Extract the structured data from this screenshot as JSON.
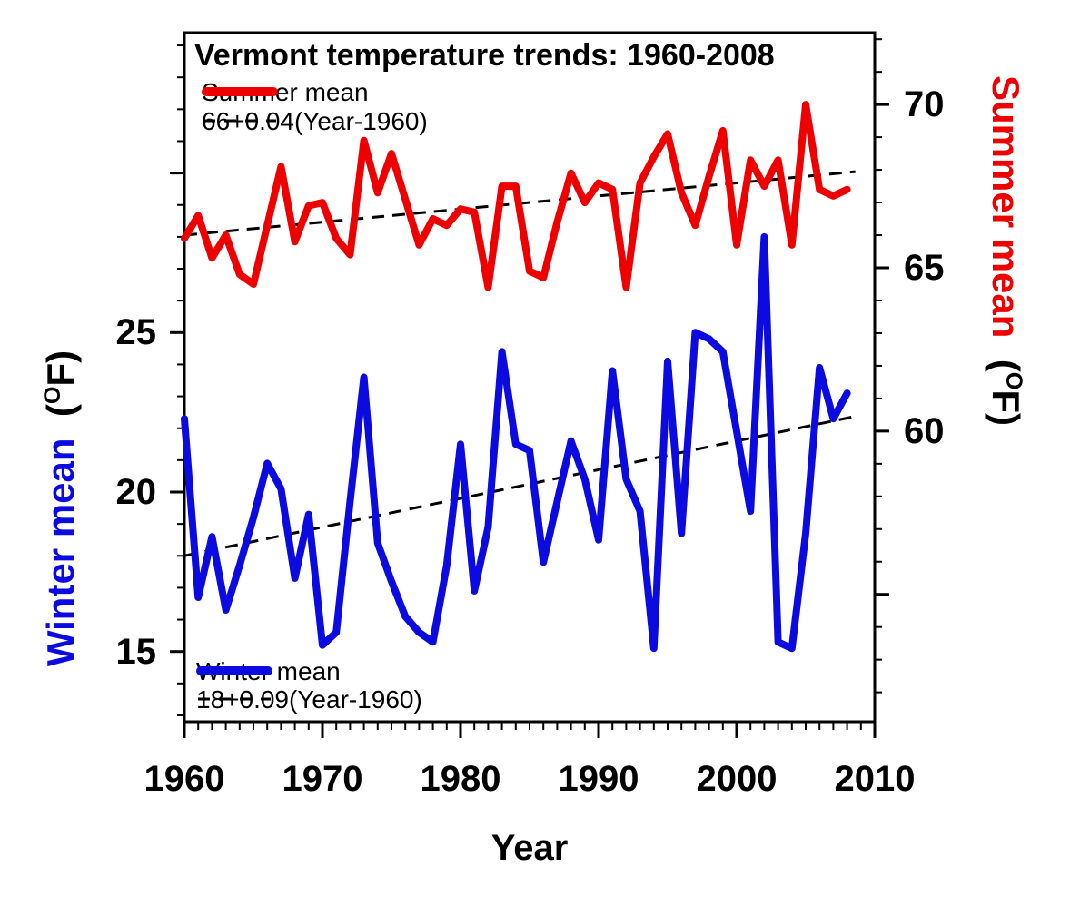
{
  "title": "Vermont temperature trends: 1960-2008",
  "colors": {
    "summer": "#ee0000",
    "winter": "#0b0be1",
    "trend": "#000000",
    "frame": "#000000"
  },
  "legend_top": {
    "line_label": "Summer mean",
    "trend_label": "66+0.04(Year-1960)"
  },
  "legend_bottom": {
    "line_label": "Winter mean",
    "trend_label": "18+0.09(Year-1960)"
  },
  "x_axis": {
    "label": "Year"
  },
  "left_axis": {
    "series_label": "Winter mean",
    "unit_open": "(",
    "unit_sup": "O",
    "unit_rest": "F)"
  },
  "right_axis": {
    "series_label": "Summer mean",
    "unit_open": "(",
    "unit_sup": "O",
    "unit_rest": "F)"
  },
  "chart_data": {
    "type": "line",
    "title": "Vermont temperature trends: 1960-2008",
    "xlabel": "Year",
    "left_ylabel": "Winter mean (°F)",
    "right_ylabel": "Summer mean (°F)",
    "xlim": [
      1960,
      2010
    ],
    "left_ylim": [
      12.8,
      34.4
    ],
    "right_ylim": [
      51.1,
      72.2
    ],
    "grid": false,
    "legend_position": "top-left and bottom-left, inside plot",
    "x_ticks_major": [
      1960,
      1970,
      1980,
      1990,
      2000,
      2010
    ],
    "x_tick_labels": [
      "1960",
      "1970",
      "1980",
      "1990",
      "2000",
      "2010"
    ],
    "left_ticks_major": [
      15,
      20,
      25,
      30
    ],
    "left_labeled_ticks": [
      15,
      20,
      25
    ],
    "left_tick_labels": [
      "15",
      "20",
      "25"
    ],
    "right_ticks_major": [
      55,
      60,
      65,
      70
    ],
    "right_labeled_ticks": [
      60,
      65,
      70
    ],
    "right_tick_labels": [
      "60",
      "65",
      "70"
    ],
    "x": [
      1960,
      1961,
      1962,
      1963,
      1964,
      1965,
      1966,
      1967,
      1968,
      1969,
      1970,
      1971,
      1972,
      1973,
      1974,
      1975,
      1976,
      1977,
      1978,
      1979,
      1980,
      1981,
      1982,
      1983,
      1984,
      1985,
      1986,
      1987,
      1988,
      1989,
      1990,
      1991,
      1992,
      1993,
      1994,
      1995,
      1996,
      1997,
      1998,
      1999,
      2000,
      2001,
      2002,
      2003,
      2004,
      2005,
      2006,
      2007,
      2008
    ],
    "series": [
      {
        "name": "Summer mean",
        "axis": "right",
        "values": [
          65.9,
          66.6,
          65.3,
          66.0,
          64.8,
          64.5,
          66.3,
          68.1,
          65.8,
          66.9,
          67.0,
          65.9,
          65.4,
          68.9,
          67.3,
          68.5,
          67.1,
          65.7,
          66.5,
          66.3,
          66.8,
          66.7,
          64.4,
          67.5,
          67.5,
          64.9,
          64.7,
          66.4,
          67.9,
          67.0,
          67.6,
          67.4,
          64.4,
          67.6,
          68.4,
          69.1,
          67.3,
          66.3,
          67.8,
          69.2,
          65.7,
          68.3,
          67.5,
          68.3,
          65.7,
          70.0,
          67.4,
          67.2,
          67.4
        ]
      },
      {
        "name": "Winter mean",
        "axis": "left",
        "values": [
          22.3,
          16.7,
          18.6,
          16.3,
          17.7,
          19.2,
          20.9,
          20.1,
          17.3,
          19.3,
          15.2,
          15.6,
          19.7,
          23.6,
          18.4,
          17.2,
          16.1,
          15.6,
          15.3,
          17.7,
          21.5,
          16.9,
          18.9,
          24.4,
          21.5,
          21.3,
          17.8,
          19.7,
          21.6,
          20.4,
          18.5,
          23.8,
          20.4,
          19.4,
          15.1,
          24.1,
          18.7,
          25.0,
          24.8,
          24.4,
          21.9,
          19.4,
          28.0,
          15.3,
          15.1,
          18.7,
          23.9,
          22.3,
          23.1
        ]
      }
    ],
    "trend_lines": [
      {
        "name": "66+0.04(Year-1960)",
        "axis": "right",
        "intercept": 66,
        "slope": 0.04,
        "x_start": 1960,
        "x_end": 2008.6,
        "style": "dashed"
      },
      {
        "name": "18+0.09(Year-1960)",
        "axis": "left",
        "intercept": 18,
        "slope": 0.09,
        "x_start": 1960,
        "x_end": 2008.6,
        "style": "dashed"
      }
    ]
  }
}
